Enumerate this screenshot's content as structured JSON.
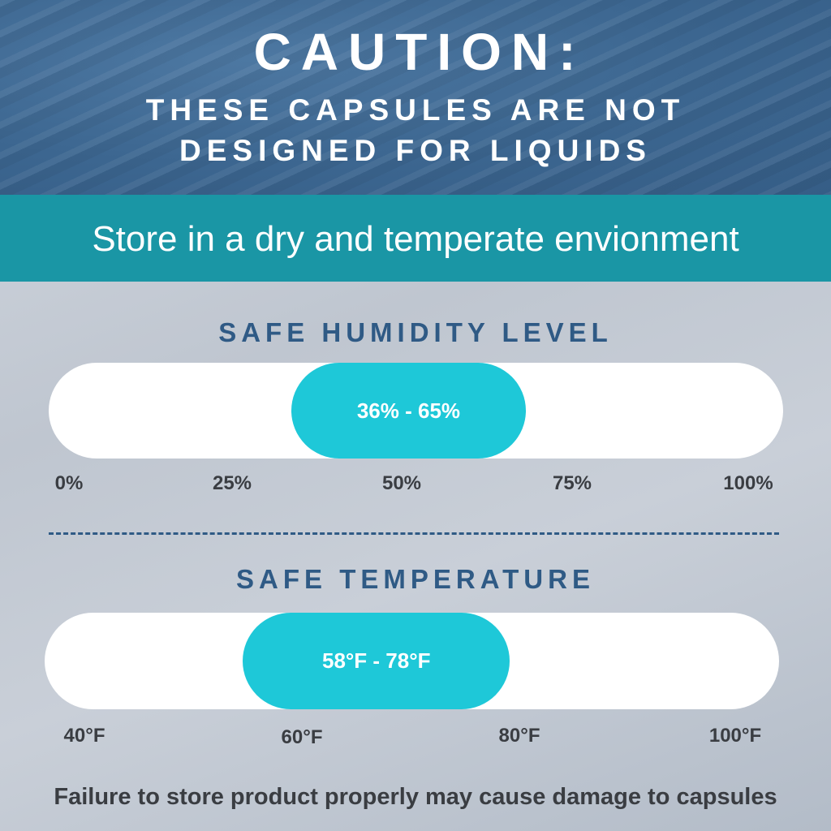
{
  "header": {
    "title": "CAUTION:",
    "line1": "THESE CAPSULES ARE NOT",
    "line2": "DESIGNED FOR LIQUIDS"
  },
  "band": {
    "text": "Store in a dry and temperate envionment"
  },
  "humidity": {
    "title": "SAFE HUMIDITY LEVEL",
    "range_label": "36% - 65%",
    "range": [
      36,
      65
    ],
    "scale": [
      0,
      100
    ],
    "ticks": [
      "0%",
      "25%",
      "50%",
      "75%",
      "100%"
    ]
  },
  "temperature": {
    "title": "SAFE TEMPERATURE",
    "range_label": "58°F - 78°F",
    "range": [
      58,
      78
    ],
    "scale": [
      40,
      100
    ],
    "ticks": [
      "40°F",
      "60°F",
      "80°F",
      "100°F"
    ]
  },
  "footer": {
    "text": "Failure to store product properly may cause damage to capsules"
  },
  "colors": {
    "header_blue": "#3c6690",
    "band_teal": "#1a96a5",
    "range_cyan": "#1ec8d8",
    "title_blue": "#2f5a85",
    "text_dark": "#3a3d42"
  }
}
